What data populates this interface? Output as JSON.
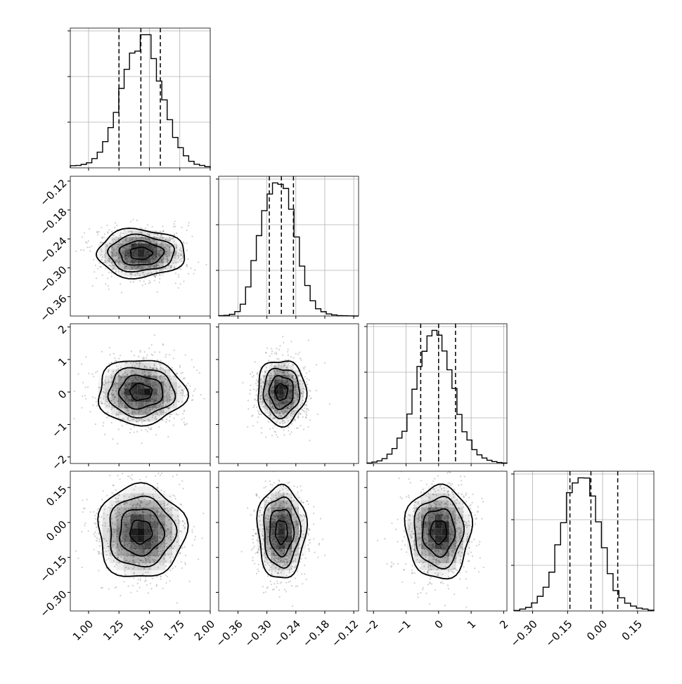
{
  "chart_data": {
    "type": "corner",
    "grid": true,
    "hist_quantile_lines": "dashed",
    "colors": {
      "line": "#000000",
      "grid": "#b0b0b0",
      "points": "#777777",
      "density": "#000000"
    },
    "panels_per_row": 4,
    "params": [
      {
        "range": [
          0.85,
          2.0
        ],
        "ticks": [
          "1.00",
          "1.25",
          "1.50",
          "1.75",
          "2.00"
        ],
        "tick_values": [
          1.0,
          1.25,
          1.5,
          1.75,
          2.0
        ],
        "mean": 1.43,
        "sd": 0.18,
        "quantiles": [
          1.25,
          1.43,
          1.59
        ],
        "hist_bins": [
          1.43,
          1.6,
          2.3,
          3.4,
          6.2,
          10.5,
          17.6,
          27.0,
          37.2,
          53.3,
          66.1,
          77.0,
          78.3,
          89.3,
          89.3,
          73.3,
          58.2,
          45.6,
          32.3,
          20.4,
          13.5,
          8.1,
          4.4,
          2.4,
          1.6,
          0.8
        ]
      },
      {
        "range": [
          -0.4,
          -0.11
        ],
        "ticks": [
          "-0.36",
          "-0.30",
          "-0.24",
          "-0.18",
          "-0.12"
        ],
        "tick_values": [
          -0.36,
          -0.3,
          -0.24,
          -0.18,
          -0.12
        ],
        "axis_left_ticks": [
          "-0.12",
          "-0.18",
          "-0.24",
          "-0.30",
          "-0.36"
        ],
        "mean": -0.27,
        "sd": 0.025,
        "quantiles": [
          -0.295,
          -0.27,
          -0.245
        ],
        "hist_bins": [
          0.3,
          0.5,
          1.2,
          3.2,
          8.5,
          21,
          40,
          58,
          76,
          88,
          96,
          95,
          92,
          77,
          57,
          36,
          22,
          11,
          5.2,
          3.1,
          1.5,
          0.8,
          0.3,
          0.2,
          0.1,
          0.0
        ]
      },
      {
        "range": [
          -2.2,
          2.1
        ],
        "ticks": [
          "-2",
          "-1",
          "0",
          "1",
          "2"
        ],
        "tick_values": [
          -2,
          -1,
          0,
          1,
          2
        ],
        "axis_left_ticks": [
          "2",
          "1",
          "0",
          "-1",
          "-2"
        ],
        "mean": 0.0,
        "sd": 0.5,
        "quantiles": [
          -0.55,
          0.0,
          0.52
        ],
        "hist_bins": [
          0.3,
          1.0,
          1.8,
          3.4,
          6.5,
          10.4,
          17.6,
          22.3,
          34.3,
          51.5,
          67.3,
          77.8,
          88.5,
          92.3,
          89.0,
          78.0,
          65.0,
          52.0,
          34.0,
          22.0,
          16.3,
          9.6,
          6.0,
          3.8,
          2.2,
          1.3,
          0.7,
          0.3
        ]
      },
      {
        "range": [
          -0.38,
          0.22
        ],
        "ticks": [
          "-0.30",
          "-0.15",
          "0.00",
          "0.15"
        ],
        "tick_values": [
          -0.3,
          -0.15,
          0.0,
          0.15
        ],
        "axis_left_ticks": [
          "0.15",
          "0.00",
          "-0.15",
          "-0.30"
        ],
        "mean": -0.04,
        "sd": 0.1,
        "quantiles": [
          -0.14,
          -0.05,
          0.065
        ],
        "hist_bins": [
          0.3,
          1.3,
          2.5,
          5.6,
          10.2,
          16.5,
          27,
          46,
          61.4,
          82.3,
          89.1,
          92.6,
          92.5,
          80,
          62,
          44,
          26,
          14.2,
          9.2,
          5.4,
          3.4,
          2.0,
          1.3,
          0.5
        ]
      }
    ]
  }
}
